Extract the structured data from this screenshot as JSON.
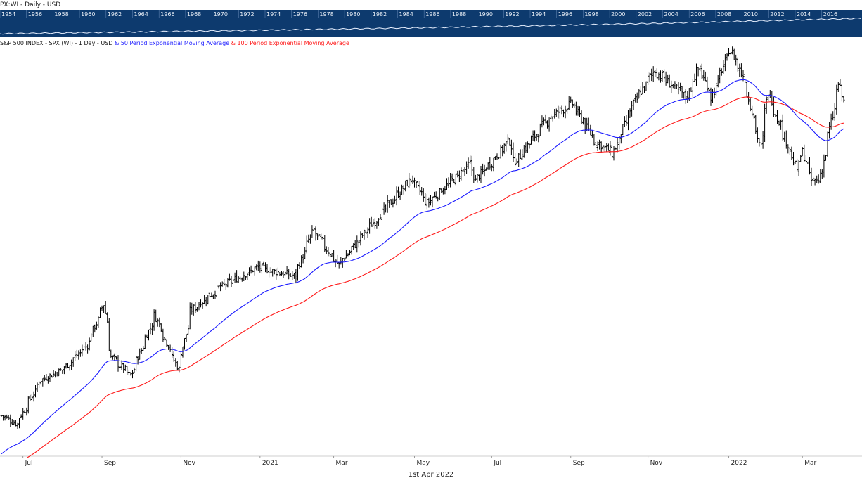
{
  "window": {
    "title": "PX:WI - Daily - USD"
  },
  "navigator": {
    "background": "#0d3a6e",
    "years": [
      "1954",
      "1956",
      "1958",
      "1960",
      "1962",
      "1964",
      "1966",
      "1968",
      "1970",
      "1972",
      "1974",
      "1976",
      "1978",
      "1980",
      "1982",
      "1984",
      "1986",
      "1988",
      "1990",
      "1992",
      "1994",
      "1996",
      "1998",
      "2000",
      "2002",
      "2004",
      "2006",
      "2008",
      "2010",
      "2012",
      "2014",
      "2016"
    ]
  },
  "legend": {
    "instrument": "S&P 500 INDEX - SPX (WI) - 1 Day - USD",
    "connector1": " & ",
    "ema50_label": "50 Period Exponential Moving Average",
    "connector2": " & ",
    "ema100_label": "100 Period Exponential Moving Average"
  },
  "footer": {
    "date": "1st Apr 2022"
  },
  "chart_data": {
    "type": "line",
    "title": "S&P 500 INDEX - SPX (WI) - 1 Day - USD",
    "xlabel": "",
    "ylabel": "",
    "x_tick_labels": [
      "Jul",
      "Sep",
      "Nov",
      "2021",
      "Mar",
      "May",
      "Jul",
      "Sep",
      "Nov",
      "2022",
      "Mar"
    ],
    "grid": false,
    "colors": {
      "price": "#000000",
      "ema50": "#1a1aff",
      "ema100": "#ff1a1a"
    },
    "price_anchors": [
      {
        "date": "2020-06-15",
        "close": 3050
      },
      {
        "date": "2020-06-26",
        "close": 3010
      },
      {
        "date": "2020-07-15",
        "close": 3220
      },
      {
        "date": "2020-08-01",
        "close": 3270
      },
      {
        "date": "2020-08-20",
        "close": 3385
      },
      {
        "date": "2020-09-02",
        "close": 3580
      },
      {
        "date": "2020-09-08",
        "close": 3330
      },
      {
        "date": "2020-09-23",
        "close": 3240
      },
      {
        "date": "2020-10-12",
        "close": 3530
      },
      {
        "date": "2020-10-30",
        "close": 3270
      },
      {
        "date": "2020-11-09",
        "close": 3550
      },
      {
        "date": "2020-12-01",
        "close": 3660
      },
      {
        "date": "2020-12-31",
        "close": 3756
      },
      {
        "date": "2021-01-29",
        "close": 3714
      },
      {
        "date": "2021-02-12",
        "close": 3935
      },
      {
        "date": "2021-03-04",
        "close": 3768
      },
      {
        "date": "2021-03-31",
        "close": 3970
      },
      {
        "date": "2021-04-30",
        "close": 4180
      },
      {
        "date": "2021-05-12",
        "close": 4063
      },
      {
        "date": "2021-06-15",
        "close": 4250
      },
      {
        "date": "2021-06-18",
        "close": 4166
      },
      {
        "date": "2021-07-15",
        "close": 4360
      },
      {
        "date": "2021-07-19",
        "close": 4258
      },
      {
        "date": "2021-08-15",
        "close": 4470
      },
      {
        "date": "2021-09-02",
        "close": 4537
      },
      {
        "date": "2021-09-20",
        "close": 4358
      },
      {
        "date": "2021-10-04",
        "close": 4300
      },
      {
        "date": "2021-10-20",
        "close": 4536
      },
      {
        "date": "2021-11-05",
        "close": 4697
      },
      {
        "date": "2021-11-30",
        "close": 4567
      },
      {
        "date": "2021-12-10",
        "close": 4712
      },
      {
        "date": "2021-12-20",
        "close": 4568
      },
      {
        "date": "2022-01-03",
        "close": 4797
      },
      {
        "date": "2022-01-14",
        "close": 4660
      },
      {
        "date": "2022-01-27",
        "close": 4326
      },
      {
        "date": "2022-02-02",
        "close": 4590
      },
      {
        "date": "2022-02-24",
        "close": 4225
      },
      {
        "date": "2022-03-01",
        "close": 4306
      },
      {
        "date": "2022-03-08",
        "close": 4170
      },
      {
        "date": "2022-03-14",
        "close": 4173
      },
      {
        "date": "2022-03-29",
        "close": 4631
      },
      {
        "date": "2022-04-01",
        "close": 4546
      }
    ],
    "series": [
      {
        "name": "S&P 500 INDEX - SPX (WI) - 1 Day - USD",
        "style": "bars"
      },
      {
        "name": "50 Period Exponential Moving Average",
        "style": "line",
        "period": 50
      },
      {
        "name": "100 Period Exponential Moving Average",
        "style": "line",
        "period": 100
      }
    ]
  }
}
